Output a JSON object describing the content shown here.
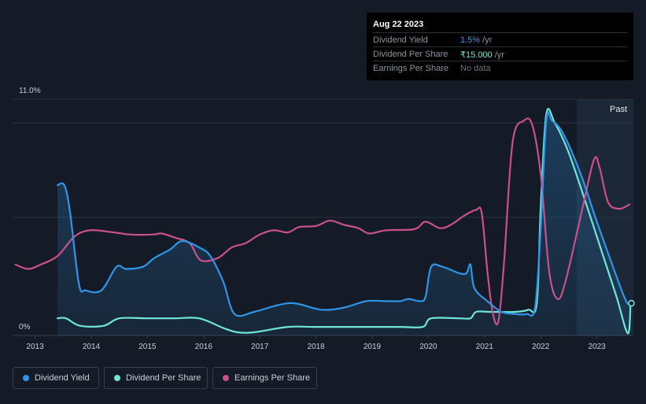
{
  "tooltip": {
    "date": "Aug 22 2023",
    "rows": [
      {
        "label": "Dividend Yield",
        "value": "1.5%",
        "unit": " /yr"
      },
      {
        "label": "Dividend Per Share",
        "value": "₹15.000",
        "unit": " /yr"
      },
      {
        "label": "Earnings Per Share",
        "value": "No data",
        "unit": ""
      }
    ]
  },
  "past_label": "Past",
  "legend": [
    {
      "label": "Dividend Yield",
      "color": "#2f95e8"
    },
    {
      "label": "Dividend Per Share",
      "color": "#6ee6d8"
    },
    {
      "label": "Earnings Per Share",
      "color": "#c9508a"
    }
  ],
  "chart_data": {
    "type": "line",
    "title": "",
    "xlabel": "",
    "ylabel": "",
    "x_ticks": [
      "2013",
      "2014",
      "2015",
      "2016",
      "2017",
      "2018",
      "2019",
      "2020",
      "2021",
      "2022",
      "2023"
    ],
    "y_ticks": [
      "0%",
      "11.0%"
    ],
    "xlim": [
      2012.6,
      2023.65
    ],
    "ylim": [
      0,
      11.0
    ],
    "grid": true,
    "past_region_start": 2022.64,
    "series": [
      {
        "name": "Dividend Yield",
        "color": "#2f95e8",
        "fill": true,
        "points": [
          [
            2013.4,
            7.0
          ],
          [
            2013.52,
            7.0
          ],
          [
            2013.62,
            5.8
          ],
          [
            2013.78,
            2.4
          ],
          [
            2013.9,
            2.1
          ],
          [
            2014.18,
            2.1
          ],
          [
            2014.45,
            3.2
          ],
          [
            2014.62,
            3.1
          ],
          [
            2014.92,
            3.2
          ],
          [
            2015.12,
            3.6
          ],
          [
            2015.4,
            4.0
          ],
          [
            2015.62,
            4.4
          ],
          [
            2015.92,
            4.1
          ],
          [
            2016.12,
            3.7
          ],
          [
            2016.35,
            2.5
          ],
          [
            2016.55,
            1.0
          ],
          [
            2016.9,
            1.1
          ],
          [
            2017.3,
            1.4
          ],
          [
            2017.62,
            1.5
          ],
          [
            2018.1,
            1.2
          ],
          [
            2018.5,
            1.3
          ],
          [
            2018.9,
            1.6
          ],
          [
            2019.25,
            1.6
          ],
          [
            2019.5,
            1.6
          ],
          [
            2019.65,
            1.7
          ],
          [
            2019.85,
            1.6
          ],
          [
            2019.95,
            1.8
          ],
          [
            2020.05,
            3.2
          ],
          [
            2020.25,
            3.2
          ],
          [
            2020.55,
            2.9
          ],
          [
            2020.68,
            2.9
          ],
          [
            2020.75,
            3.3
          ],
          [
            2020.82,
            2.2
          ],
          [
            2021.05,
            1.6
          ],
          [
            2021.3,
            1.1
          ],
          [
            2021.55,
            1.0
          ],
          [
            2021.75,
            1.0
          ],
          [
            2021.9,
            1.3
          ],
          [
            2022.0,
            5.0
          ],
          [
            2022.1,
            10.0
          ],
          [
            2022.2,
            10.0
          ],
          [
            2022.4,
            9.4
          ],
          [
            2022.7,
            7.6
          ],
          [
            2023.0,
            5.3
          ],
          [
            2023.3,
            3.1
          ],
          [
            2023.52,
            1.6
          ],
          [
            2023.6,
            1.5
          ]
        ]
      },
      {
        "name": "Dividend Per Share",
        "color": "#6ee6d8",
        "fill": false,
        "points": [
          [
            2013.4,
            0.8
          ],
          [
            2013.55,
            0.8
          ],
          [
            2013.8,
            0.45
          ],
          [
            2014.22,
            0.45
          ],
          [
            2014.5,
            0.8
          ],
          [
            2015.0,
            0.8
          ],
          [
            2015.5,
            0.8
          ],
          [
            2015.92,
            0.8
          ],
          [
            2016.35,
            0.35
          ],
          [
            2016.6,
            0.15
          ],
          [
            2016.9,
            0.15
          ],
          [
            2017.5,
            0.4
          ],
          [
            2018.0,
            0.4
          ],
          [
            2019.0,
            0.4
          ],
          [
            2019.5,
            0.4
          ],
          [
            2019.9,
            0.4
          ],
          [
            2020.05,
            0.8
          ],
          [
            2020.55,
            0.8
          ],
          [
            2020.75,
            0.8
          ],
          [
            2020.85,
            1.1
          ],
          [
            2021.1,
            1.1
          ],
          [
            2021.55,
            1.1
          ],
          [
            2021.78,
            1.2
          ],
          [
            2021.93,
            1.5
          ],
          [
            2022.0,
            6.0
          ],
          [
            2022.1,
            10.3
          ],
          [
            2022.25,
            9.9
          ],
          [
            2022.5,
            8.5
          ],
          [
            2022.8,
            6.2
          ],
          [
            2023.1,
            3.8
          ],
          [
            2023.35,
            1.8
          ],
          [
            2023.55,
            0.1
          ],
          [
            2023.6,
            1.5
          ]
        ]
      },
      {
        "name": "Earnings Per Share",
        "color": "#c9508a",
        "fill": false,
        "points": [
          [
            2012.65,
            3.3
          ],
          [
            2012.88,
            3.1
          ],
          [
            2013.1,
            3.3
          ],
          [
            2013.4,
            3.7
          ],
          [
            2013.7,
            4.6
          ],
          [
            2013.98,
            4.9
          ],
          [
            2014.4,
            4.8
          ],
          [
            2014.7,
            4.7
          ],
          [
            2015.1,
            4.7
          ],
          [
            2015.25,
            4.75
          ],
          [
            2015.5,
            4.55
          ],
          [
            2015.75,
            4.3
          ],
          [
            2015.95,
            3.5
          ],
          [
            2016.25,
            3.6
          ],
          [
            2016.5,
            4.1
          ],
          [
            2016.75,
            4.3
          ],
          [
            2017.0,
            4.7
          ],
          [
            2017.25,
            4.9
          ],
          [
            2017.5,
            4.8
          ],
          [
            2017.7,
            5.05
          ],
          [
            2018.0,
            5.1
          ],
          [
            2018.25,
            5.35
          ],
          [
            2018.5,
            5.15
          ],
          [
            2018.75,
            5.0
          ],
          [
            2018.95,
            4.75
          ],
          [
            2019.25,
            4.9
          ],
          [
            2019.75,
            4.95
          ],
          [
            2019.95,
            5.3
          ],
          [
            2020.2,
            5.0
          ],
          [
            2020.4,
            5.15
          ],
          [
            2020.65,
            5.6
          ],
          [
            2020.85,
            5.85
          ],
          [
            2020.95,
            5.7
          ],
          [
            2021.05,
            3.0
          ],
          [
            2021.15,
            1.0
          ],
          [
            2021.25,
            0.7
          ],
          [
            2021.35,
            3.5
          ],
          [
            2021.5,
            9.0
          ],
          [
            2021.7,
            10.0
          ],
          [
            2021.85,
            9.8
          ],
          [
            2022.0,
            7.5
          ],
          [
            2022.15,
            3.0
          ],
          [
            2022.3,
            1.7
          ],
          [
            2022.45,
            2.6
          ],
          [
            2022.75,
            6.0
          ],
          [
            2022.95,
            8.2
          ],
          [
            2023.05,
            7.8
          ],
          [
            2023.2,
            6.2
          ],
          [
            2023.4,
            5.9
          ],
          [
            2023.58,
            6.1
          ]
        ]
      }
    ]
  }
}
